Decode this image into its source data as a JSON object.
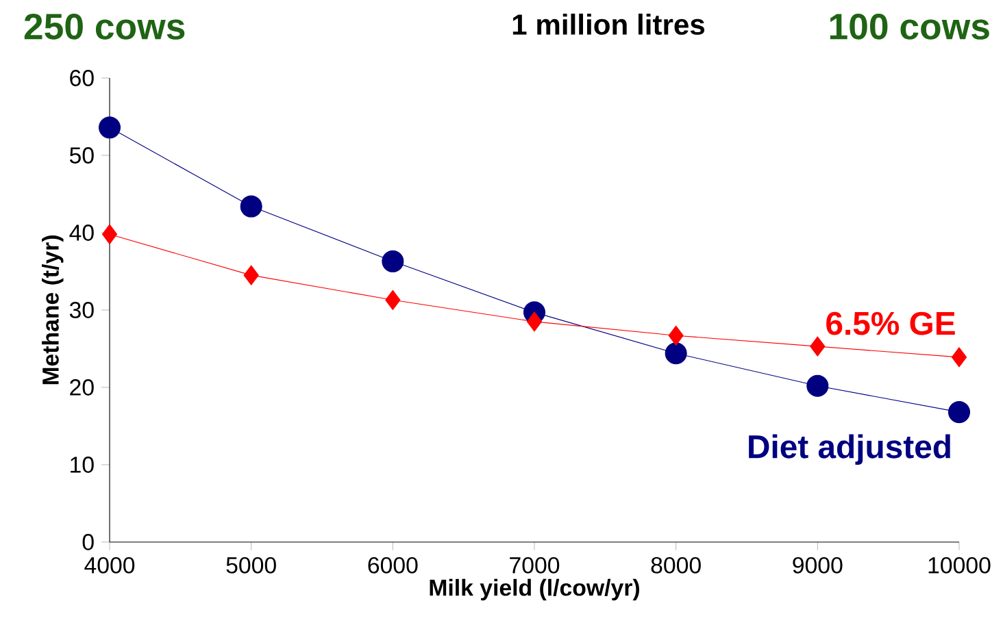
{
  "chart_data": {
    "type": "line",
    "title": "1 million litres",
    "xlabel": "Milk yield (l/cow/yr)",
    "ylabel": "Methane (t/yr)",
    "annotations": [
      "250 cows",
      "100 cows"
    ],
    "x": [
      4000,
      5000,
      6000,
      7000,
      8000,
      9000,
      10000
    ],
    "series": [
      {
        "name": "Diet adjusted",
        "color": "#000080",
        "marker": "circle",
        "values": [
          53.6,
          43.4,
          36.3,
          29.7,
          24.4,
          20.2,
          16.8
        ]
      },
      {
        "name": "6.5% GE",
        "color": "#ff0000",
        "marker": "diamond",
        "values": [
          39.8,
          34.5,
          31.3,
          28.5,
          26.7,
          25.3,
          23.9
        ]
      }
    ],
    "xlim": [
      4000,
      10000
    ],
    "ylim": [
      0,
      60
    ],
    "xticks": [
      4000,
      5000,
      6000,
      7000,
      8000,
      9000,
      10000
    ],
    "yticks": [
      0,
      10,
      20,
      30,
      40,
      50,
      60
    ],
    "grid": false,
    "legend": false
  }
}
